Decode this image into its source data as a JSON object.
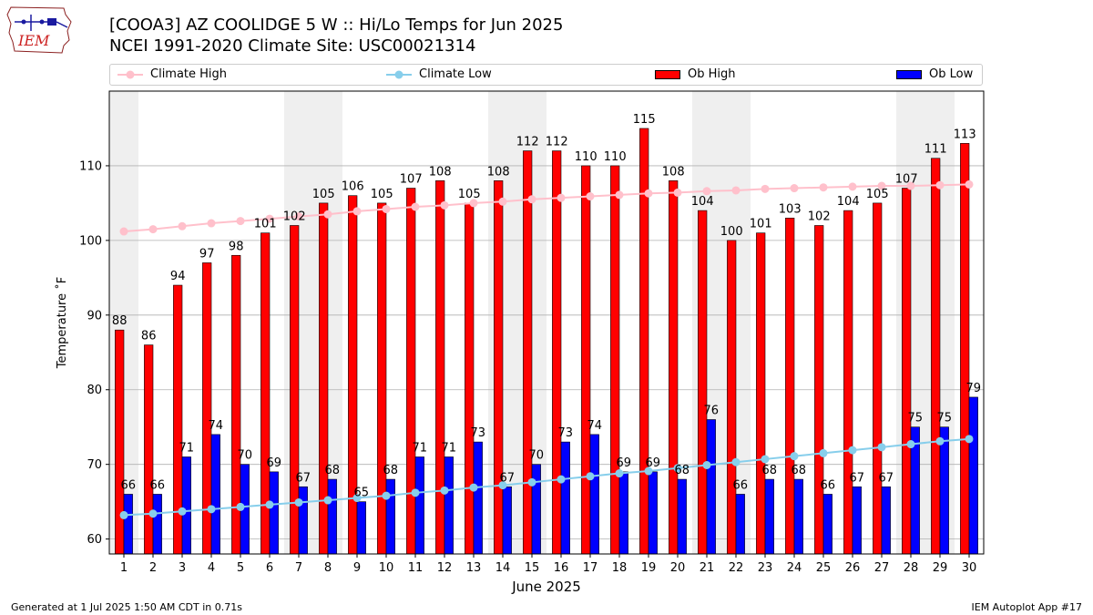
{
  "header": {
    "title_line1": "[COOA3] AZ COOLIDGE 5 W :: Hi/Lo Temps for Jun 2025",
    "title_line2": "NCEI 1991-2020 Climate Site: USC00021314",
    "logo_text": "IEM"
  },
  "legend": {
    "climate_high": "Climate High",
    "climate_low": "Climate Low",
    "ob_high": "Ob High",
    "ob_low": "Ob Low"
  },
  "colors": {
    "ob_high": "#ff0000",
    "ob_low": "#0000ff",
    "climate_high": "#ffc0cb",
    "climate_low": "#87ceeb",
    "weekend_band": "#efefef",
    "grid": "#b0b0b0"
  },
  "chart_data": {
    "type": "bar",
    "xlabel": "June 2025",
    "ylabel": "Temperature ˚F",
    "ylim": [
      58,
      120
    ],
    "yticks": [
      60,
      70,
      80,
      90,
      100,
      110
    ],
    "grid": "horizontal",
    "legend_position": "top",
    "weekend_days": [
      1,
      7,
      8,
      14,
      15,
      21,
      22,
      28,
      29
    ],
    "categories": [
      "1",
      "2",
      "3",
      "4",
      "5",
      "6",
      "7",
      "8",
      "9",
      "10",
      "11",
      "12",
      "13",
      "14",
      "15",
      "16",
      "17",
      "18",
      "19",
      "20",
      "21",
      "22",
      "23",
      "24",
      "25",
      "26",
      "27",
      "28",
      "29",
      "30"
    ],
    "series": [
      {
        "name": "Ob High",
        "kind": "bar",
        "values": [
          88,
          86,
          94,
          97,
          98,
          101,
          102,
          105,
          106,
          105,
          107,
          108,
          105,
          108,
          112,
          112,
          110,
          110,
          115,
          108,
          104,
          100,
          101,
          103,
          102,
          104,
          105,
          107,
          111,
          113
        ]
      },
      {
        "name": "Ob Low",
        "kind": "bar",
        "values": [
          66,
          66,
          71,
          74,
          70,
          69,
          67,
          68,
          65,
          68,
          71,
          71,
          73,
          67,
          70,
          73,
          74,
          69,
          69,
          68,
          76,
          66,
          68,
          68,
          66,
          67,
          67,
          75,
          75,
          79
        ]
      },
      {
        "name": "Climate High",
        "kind": "line",
        "values": [
          101.2,
          101.5,
          101.9,
          102.3,
          102.6,
          102.9,
          103.2,
          103.5,
          103.9,
          104.2,
          104.5,
          104.7,
          105.0,
          105.2,
          105.5,
          105.7,
          105.9,
          106.1,
          106.3,
          106.4,
          106.6,
          106.7,
          106.9,
          107.0,
          107.1,
          107.2,
          107.3,
          107.3,
          107.4,
          107.5
        ]
      },
      {
        "name": "Climate Low",
        "kind": "line",
        "values": [
          63.2,
          63.4,
          63.7,
          64.0,
          64.3,
          64.6,
          64.9,
          65.2,
          65.5,
          65.8,
          66.2,
          66.5,
          66.9,
          67.2,
          67.6,
          68.0,
          68.4,
          68.8,
          69.1,
          69.5,
          69.9,
          70.3,
          70.7,
          71.1,
          71.5,
          71.9,
          72.3,
          72.7,
          73.1,
          73.4
        ]
      }
    ]
  },
  "footer": {
    "generated": "Generated at 1 Jul 2025 1:50 AM CDT in 0.71s",
    "app": "IEM Autoplot App #17"
  }
}
